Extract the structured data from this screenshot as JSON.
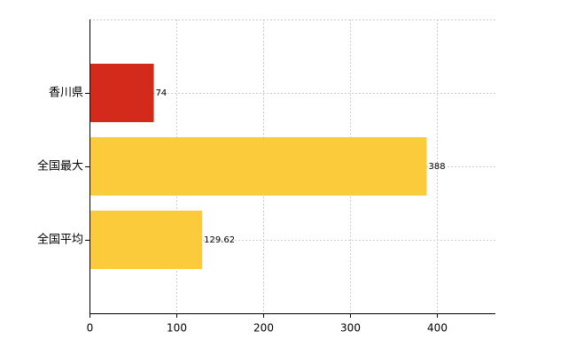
{
  "chart_data": {
    "type": "hbar",
    "categories": [
      "香川県",
      "全国最大",
      "全国平均"
    ],
    "values": [
      74,
      388,
      129.62
    ],
    "colors": [
      "#d42a1c",
      "#fccb3c",
      "#fccb3c"
    ],
    "xlim": [
      0,
      467
    ],
    "xticks": [
      0,
      100,
      200,
      300,
      400
    ],
    "grid": true
  }
}
